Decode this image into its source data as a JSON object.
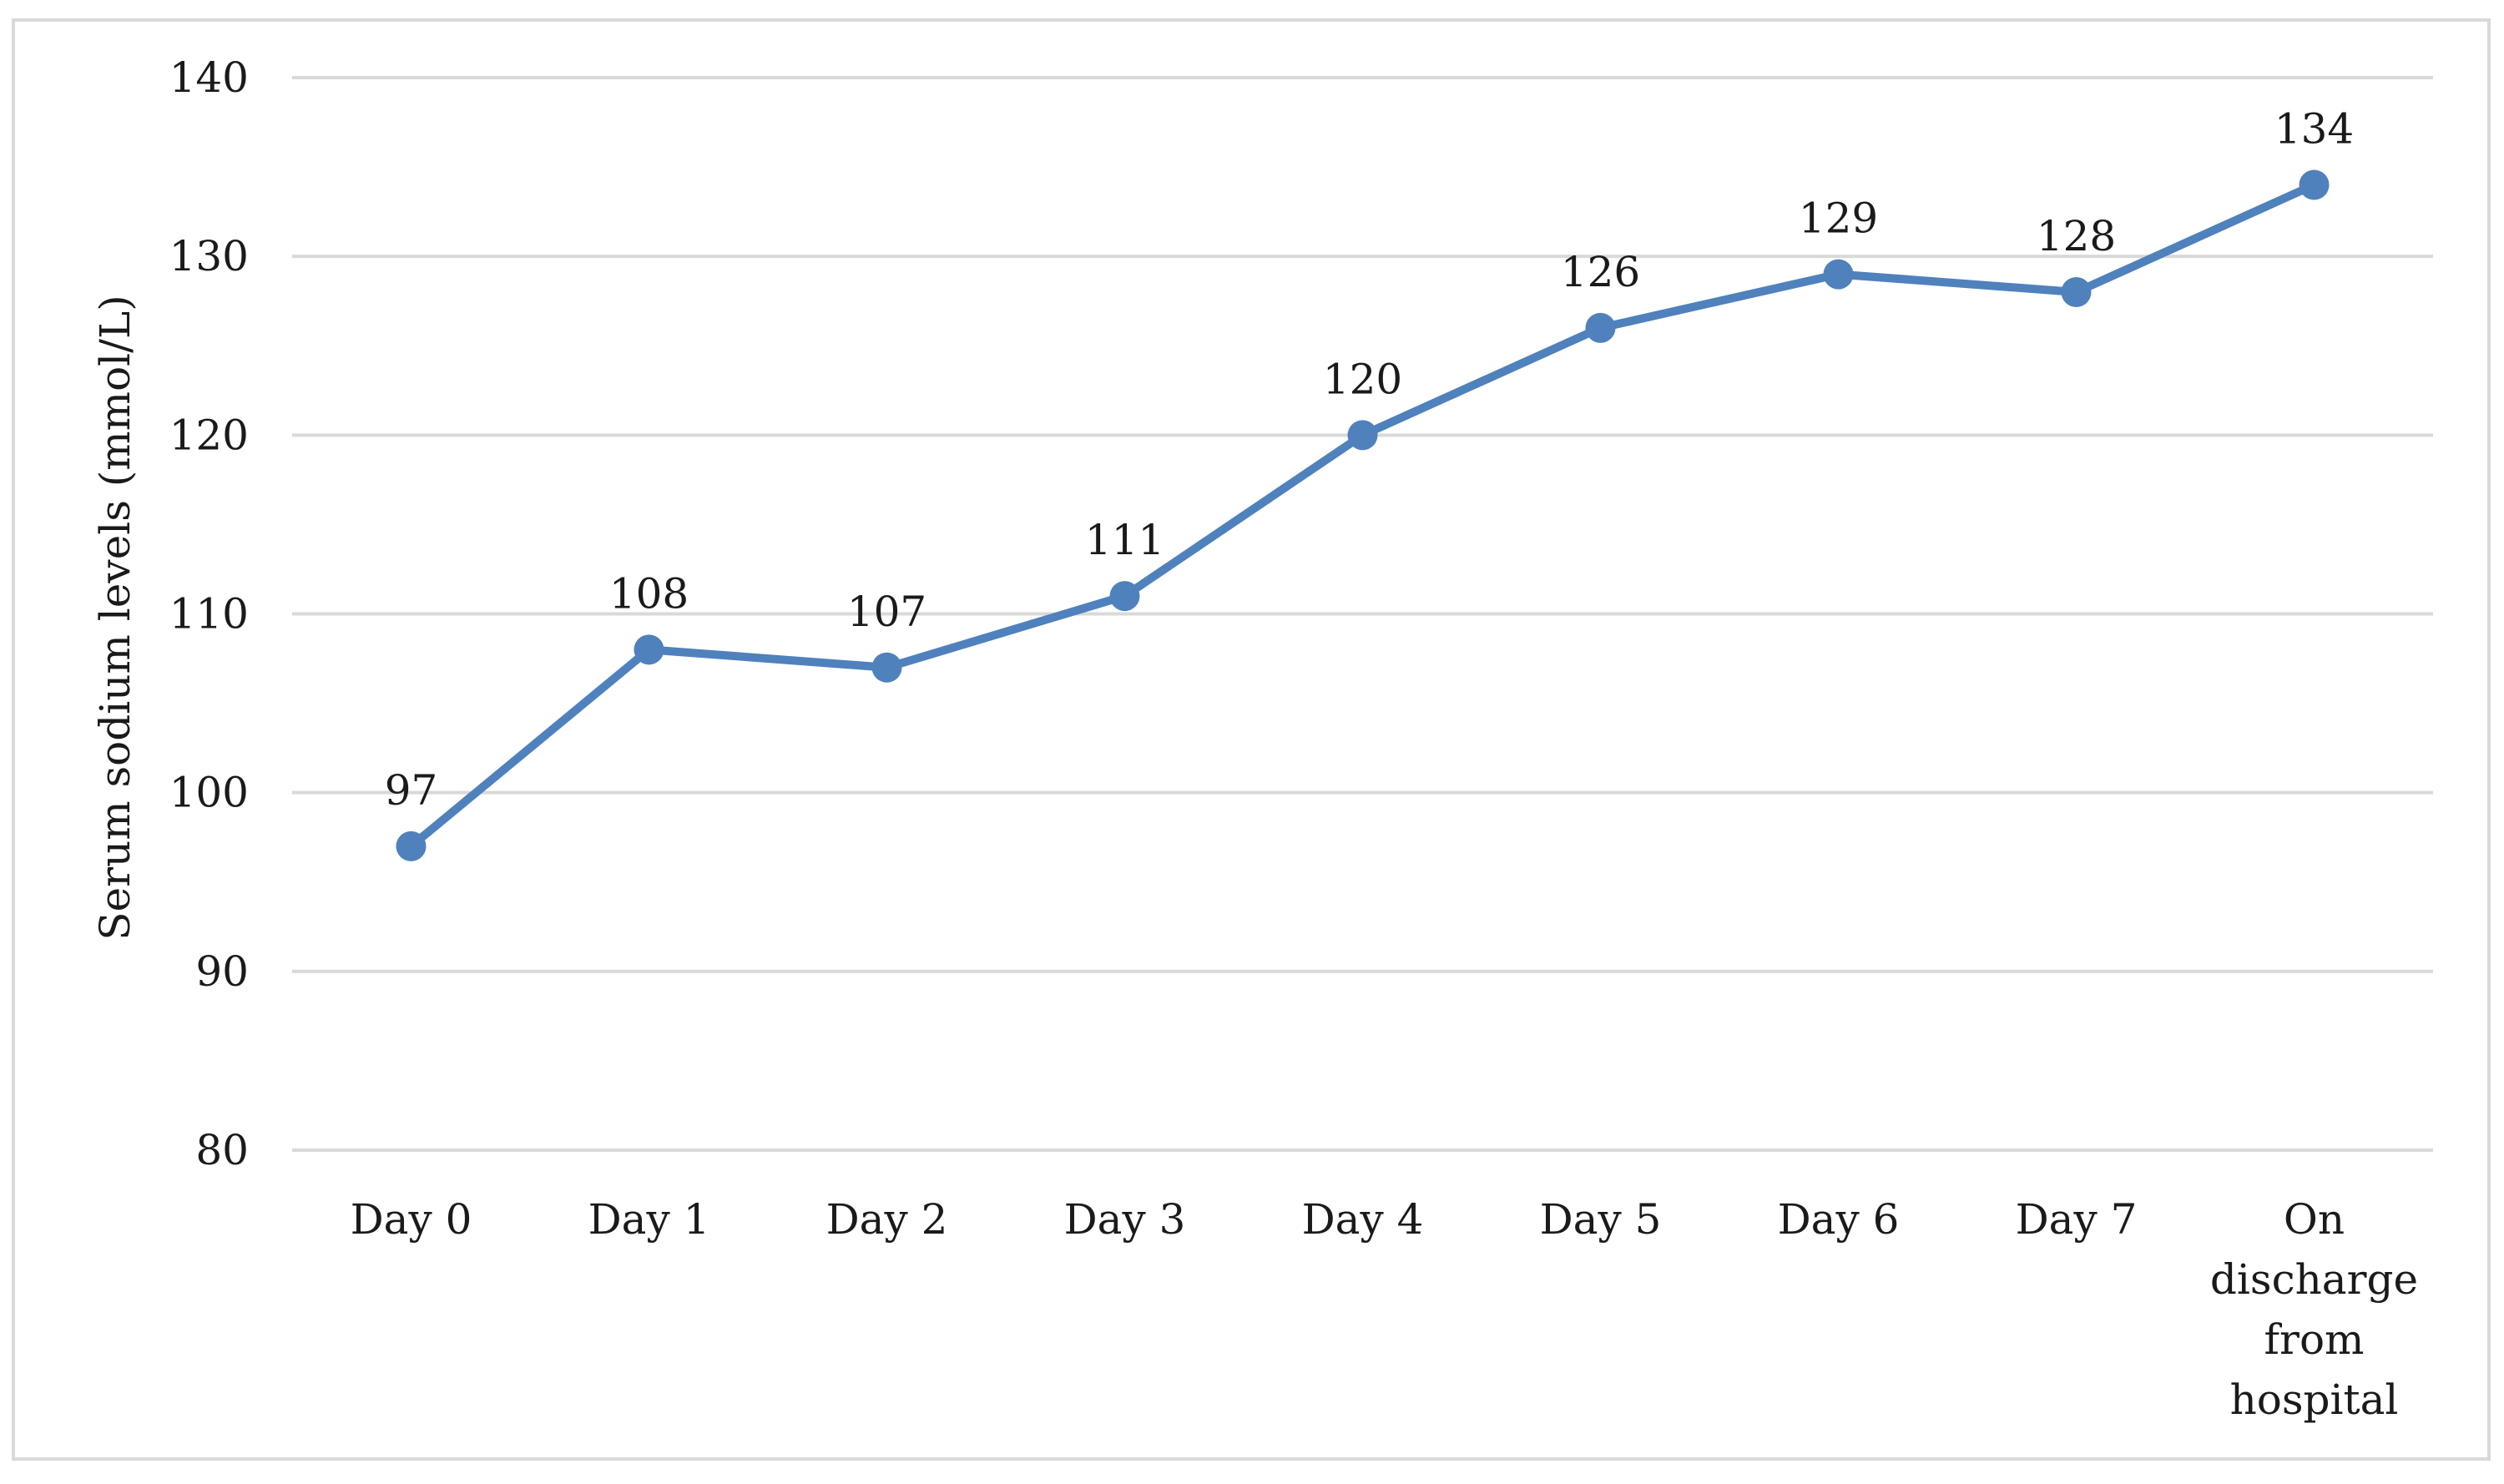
{
  "chart_data": {
    "type": "line",
    "title": "",
    "xlabel": "",
    "ylabel": "Serum sodium levels (mmol/L)",
    "ylim": [
      80,
      140
    ],
    "yticks": [
      80,
      90,
      100,
      110,
      120,
      130,
      140
    ],
    "grid": true,
    "legend": "none",
    "categories": [
      [
        "Day 0"
      ],
      [
        "Day 1"
      ],
      [
        "Day 2"
      ],
      [
        "Day 3"
      ],
      [
        "Day 4"
      ],
      [
        "Day 5"
      ],
      [
        "Day 6"
      ],
      [
        "Day 7"
      ],
      [
        "On",
        "discharge",
        "from",
        "hospital"
      ]
    ],
    "series": [
      {
        "values": [
          97,
          108,
          107,
          111,
          120,
          126,
          129,
          128,
          134
        ],
        "color": "#4f81bd",
        "data_labels": [
          "97",
          "108",
          "107",
          "111",
          "120",
          "126",
          "129",
          "128",
          "134"
        ]
      }
    ]
  }
}
